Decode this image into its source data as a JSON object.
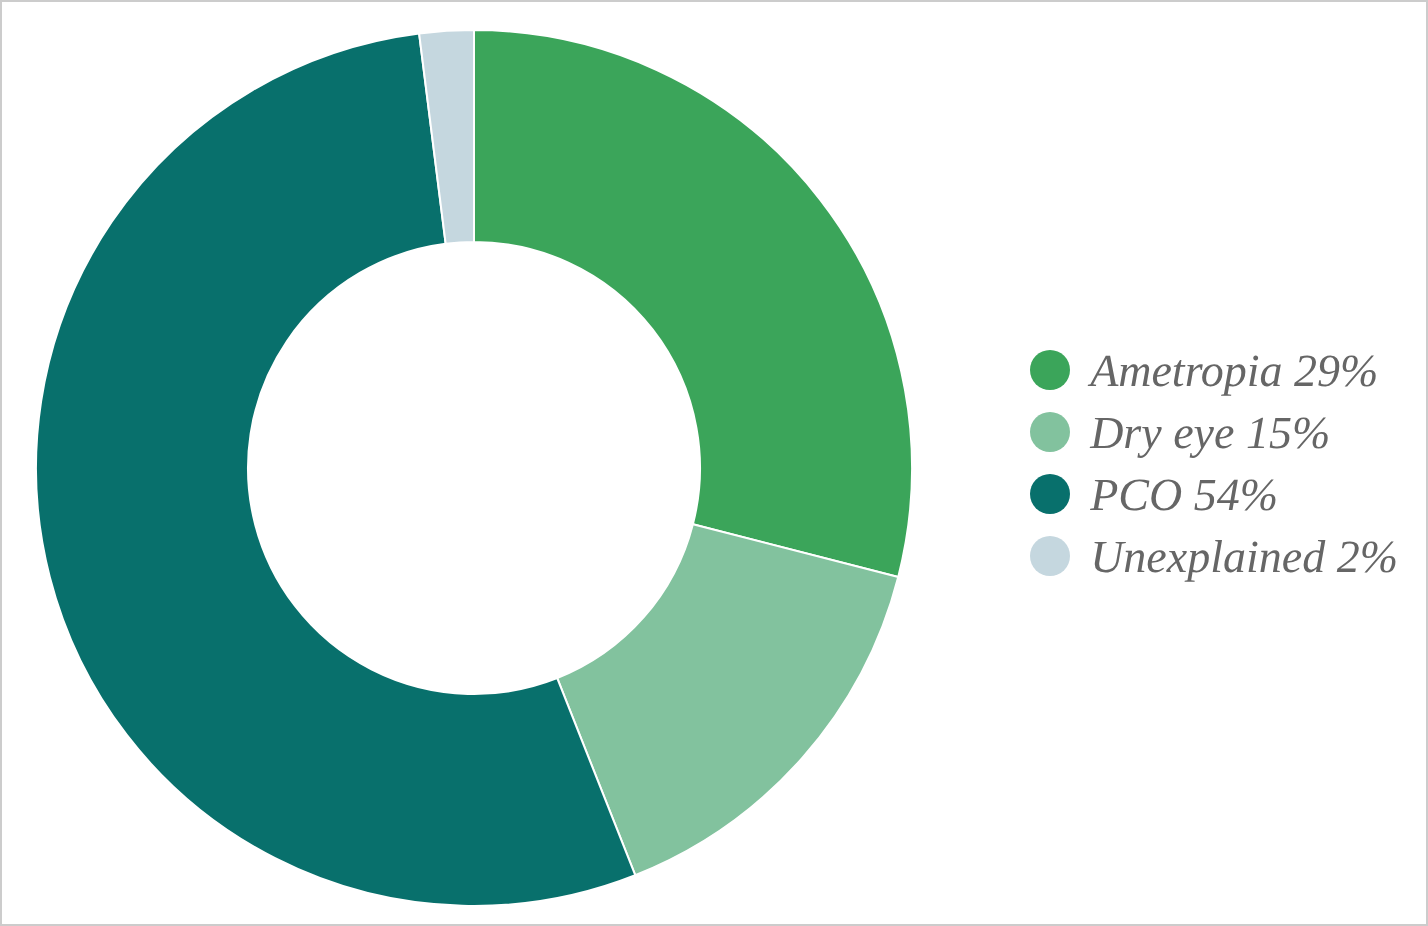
{
  "chart_data": {
    "type": "donut",
    "categories": [
      "Ametropia",
      "Dry eye",
      "PCO",
      "Unexplained"
    ],
    "values": [
      29,
      15,
      54,
      2
    ],
    "value_labels": [
      "29%",
      "15%",
      "54%",
      "2%"
    ],
    "colors": [
      "#3ba55a",
      "#82c29e",
      "#08706c",
      "#c5d7df"
    ],
    "legend": "right"
  }
}
